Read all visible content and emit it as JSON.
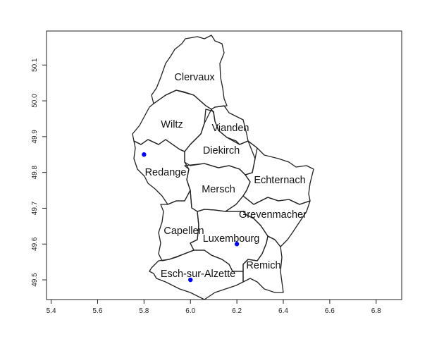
{
  "map": {
    "xlim": [
      5.38,
      6.91
    ],
    "ylim": [
      49.445,
      50.195
    ],
    "x_ticks": [
      "5.4",
      "5.6",
      "5.8",
      "6.0",
      "6.2",
      "6.4",
      "6.6",
      "6.8"
    ],
    "y_ticks": [
      "49.5",
      "49.6",
      "49.7",
      "49.8",
      "49.9",
      "50.0",
      "50.1"
    ],
    "regions": [
      "Clervaux",
      "Wiltz",
      "Vianden",
      "Diekirch",
      "Redange",
      "Mersch",
      "Echternach",
      "Grevenmacher",
      "Capellen",
      "Luxembourg",
      "Esch-sur-Alzette",
      "Remich"
    ],
    "points": [
      {
        "lon": 5.8,
        "lat": 49.85
      },
      {
        "lon": 6.2,
        "lat": 49.6
      },
      {
        "lon": 6.0,
        "lat": 49.5
      }
    ],
    "point_color": "#0000ff",
    "outline_color": "#222222"
  }
}
